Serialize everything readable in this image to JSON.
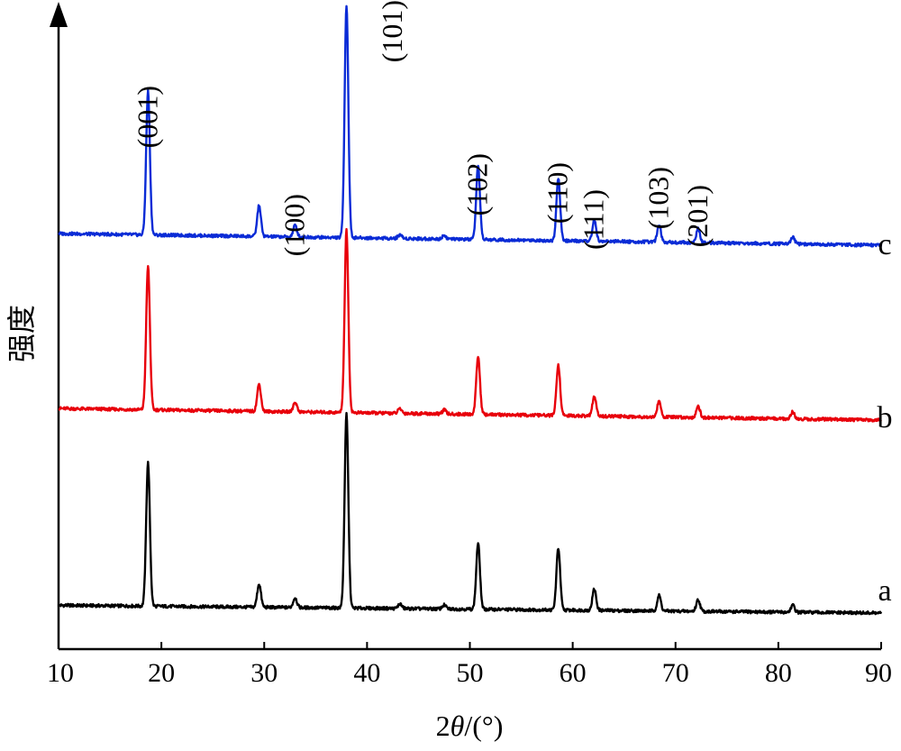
{
  "chart_data": {
    "type": "line",
    "xlabel_parts": {
      "prefix": "2",
      "symbol": "θ",
      "suffix": "/(°)"
    },
    "ylabel": "强度",
    "xlim": [
      10,
      90
    ],
    "xticks": [
      10,
      20,
      30,
      40,
      50,
      60,
      70,
      80,
      90
    ],
    "grid": false,
    "y_ticks_shown": false,
    "peaks": [
      {
        "x": 18.7,
        "label": "(001)"
      },
      {
        "x": 29.5,
        "label": ""
      },
      {
        "x": 33.0,
        "label": "(100)"
      },
      {
        "x": 38.0,
        "label": "(101)"
      },
      {
        "x": 43.2,
        "label": ""
      },
      {
        "x": 47.5,
        "label": ""
      },
      {
        "x": 50.8,
        "label": "(102)"
      },
      {
        "x": 58.6,
        "label": "(110)"
      },
      {
        "x": 62.1,
        "label": "(111)"
      },
      {
        "x": 68.4,
        "label": "(103)"
      },
      {
        "x": 72.2,
        "label": "(201)"
      },
      {
        "x": 81.4,
        "label": ""
      }
    ],
    "series": [
      {
        "name": "a",
        "color": "#000000",
        "baseline": [
          [
            10,
            0.02
          ],
          [
            90,
            0.0
          ]
        ],
        "intensities": [
          0.37,
          0.06,
          0.025,
          0.5,
          0.012,
          0.01,
          0.17,
          0.16,
          0.055,
          0.04,
          0.03,
          0.018
        ]
      },
      {
        "name": "b",
        "color": "#e8000b",
        "baseline": [
          [
            10,
            0.03
          ],
          [
            90,
            0.0
          ]
        ],
        "intensities": [
          0.37,
          0.07,
          0.025,
          0.47,
          0.012,
          0.01,
          0.15,
          0.13,
          0.05,
          0.04,
          0.03,
          0.018
        ]
      },
      {
        "name": "c",
        "color": "#0a2bd6",
        "baseline": [
          [
            10,
            0.03
          ],
          [
            90,
            0.0
          ]
        ],
        "intensities": [
          0.37,
          0.08,
          0.03,
          0.6,
          0.01,
          0.01,
          0.19,
          0.16,
          0.055,
          0.045,
          0.035,
          0.018
        ]
      }
    ]
  }
}
